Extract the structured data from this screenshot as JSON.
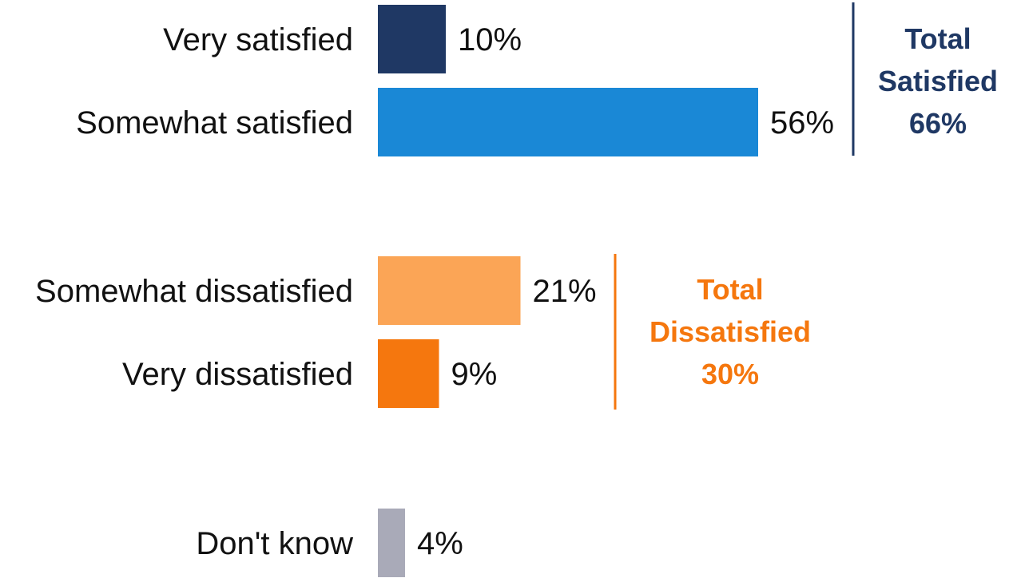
{
  "chart_data": {
    "type": "bar",
    "orientation": "horizontal",
    "categories": [
      "Very satisfied",
      "Somewhat satisfied",
      "Somewhat dissatisfied",
      "Very dissatisfied",
      "Don't know"
    ],
    "values": [
      10,
      56,
      21,
      9,
      4
    ],
    "value_labels": [
      "10%",
      "56%",
      "21%",
      "9%",
      "4%"
    ],
    "colors": [
      "#1f3864",
      "#1a88d6",
      "#fba556",
      "#f5770e",
      "#a9aab8"
    ],
    "title": "",
    "xlabel": "",
    "ylabel": "",
    "xlim": [
      0,
      56
    ],
    "grid": false,
    "legend": "none",
    "groups": [
      {
        "members": [
          0,
          1
        ],
        "line1": "Total",
        "line2": "Satisfied",
        "line3": "66%",
        "value": 66,
        "color": "#1f3864"
      },
      {
        "members": [
          2,
          3
        ],
        "line1": "Total",
        "line2": "Dissatisfied",
        "line3": "30%",
        "value": 30,
        "color": "#f5770e"
      }
    ]
  }
}
